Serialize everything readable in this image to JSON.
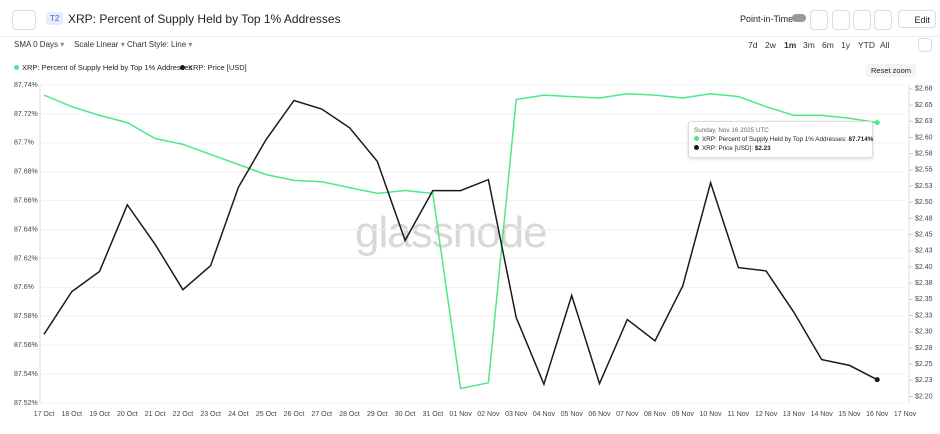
{
  "header": {
    "badge": "T2",
    "title": "XRP: Percent of Supply Held by Top 1% Addresses",
    "point_in_time": "Point-in-Time",
    "edit": "Edit"
  },
  "toolbar": {
    "sma": "SMA 0 Days",
    "scale": "Scale Linear",
    "style": "Chart Style: Line",
    "ranges": [
      "7d",
      "2w",
      "1m",
      "3m",
      "6m",
      "1y",
      "YTD",
      "All"
    ],
    "reset": "Reset zoom"
  },
  "watermark": "glassnode",
  "tooltip": {
    "date": "Sunday, Nov 16 2025 UTC",
    "rows": [
      {
        "label": "XRP: Percent of Supply Held by Top 1% Addresses:",
        "value": "87.714%"
      },
      {
        "label": "XRP: Price [USD]:",
        "value": "$2.23"
      }
    ]
  },
  "chart_data": {
    "type": "line",
    "categories": [
      "17 Oct",
      "18 Oct",
      "19 Oct",
      "20 Oct",
      "21 Oct",
      "22 Oct",
      "23 Oct",
      "24 Oct",
      "25 Oct",
      "26 Oct",
      "27 Oct",
      "28 Oct",
      "29 Oct",
      "30 Oct",
      "31 Oct",
      "01 Nov",
      "02 Nov",
      "03 Nov",
      "04 Nov",
      "05 Nov",
      "06 Nov",
      "07 Nov",
      "08 Nov",
      "09 Nov",
      "10 Nov",
      "11 Nov",
      "12 Nov",
      "13 Nov",
      "14 Nov",
      "15 Nov",
      "16 Nov",
      "17 Nov"
    ],
    "series": [
      {
        "name": "XRP: Percent of Supply Held by Top 1% Addresses",
        "color": "#4ee88a",
        "axis": "y",
        "values": [
          87.733,
          87.725,
          87.719,
          87.714,
          87.703,
          87.699,
          87.692,
          87.685,
          87.678,
          87.674,
          87.673,
          87.669,
          87.665,
          87.667,
          87.665,
          87.53,
          87.534,
          87.73,
          87.733,
          87.732,
          87.731,
          87.734,
          87.733,
          87.731,
          87.734,
          87.732,
          87.725,
          87.719,
          87.719,
          87.717,
          87.714,
          null
        ]
      },
      {
        "name": "XRP: Price [USD]",
        "color": "#1a1a1a",
        "axis": "y2",
        "values": [
          2.296,
          2.362,
          2.393,
          2.496,
          2.435,
          2.365,
          2.402,
          2.523,
          2.597,
          2.657,
          2.644,
          2.615,
          2.563,
          2.441,
          2.518,
          2.518,
          2.535,
          2.322,
          2.219,
          2.356,
          2.22,
          2.319,
          2.286,
          2.371,
          2.53,
          2.399,
          2.394,
          2.33,
          2.257,
          2.248,
          2.226,
          null
        ]
      }
    ],
    "ylim": [
      87.52,
      87.74
    ],
    "yticks": [
      {
        "value": 87.52,
        "label": "87.52%"
      },
      {
        "value": 87.54,
        "label": "87.54%"
      },
      {
        "value": 87.56,
        "label": "87.56%"
      },
      {
        "value": 87.58,
        "label": "87.58%"
      },
      {
        "value": 87.6,
        "label": "87.6%"
      },
      {
        "value": 87.62,
        "label": "87.62%"
      },
      {
        "value": 87.64,
        "label": "87.64%"
      },
      {
        "value": 87.66,
        "label": "87.66%"
      },
      {
        "value": 87.68,
        "label": "87.68%"
      },
      {
        "value": 87.7,
        "label": "87.7%"
      },
      {
        "value": 87.72,
        "label": "87.72%"
      },
      {
        "value": 87.74,
        "label": "87.74%"
      }
    ],
    "y2lim": [
      2.19,
      2.681
    ],
    "y2ticks": [
      {
        "value": 2.2,
        "label": "$2.20"
      },
      {
        "value": 2.225,
        "label": "$2.23"
      },
      {
        "value": 2.25,
        "label": "$2.25"
      },
      {
        "value": 2.275,
        "label": "$2.28"
      },
      {
        "value": 2.3,
        "label": "$2.30"
      },
      {
        "value": 2.325,
        "label": "$2.33"
      },
      {
        "value": 2.35,
        "label": "$2.35"
      },
      {
        "value": 2.375,
        "label": "$2.38"
      },
      {
        "value": 2.4,
        "label": "$2.40"
      },
      {
        "value": 2.425,
        "label": "$2.43"
      },
      {
        "value": 2.45,
        "label": "$2.45"
      },
      {
        "value": 2.475,
        "label": "$2.48"
      },
      {
        "value": 2.5,
        "label": "$2.50"
      },
      {
        "value": 2.525,
        "label": "$2.53"
      },
      {
        "value": 2.55,
        "label": "$2.55"
      },
      {
        "value": 2.575,
        "label": "$2.58"
      },
      {
        "value": 2.6,
        "label": "$2.60"
      },
      {
        "value": 2.625,
        "label": "$2.63"
      },
      {
        "value": 2.65,
        "label": "$2.65"
      },
      {
        "value": 2.675,
        "label": "$2.68"
      }
    ],
    "grid": true
  }
}
